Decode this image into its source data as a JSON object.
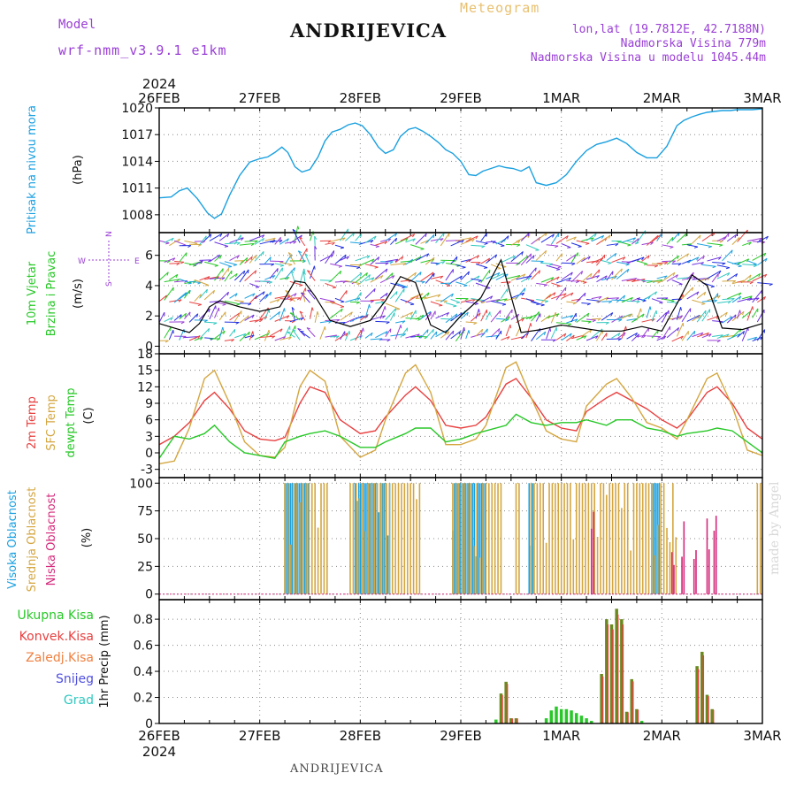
{
  "header": {
    "model_label": "Model",
    "model_name": "wrf-nmm_v3.9.1 e1km",
    "station": "ANDRIJEVICA",
    "meteogram_label": "Meteogram",
    "lonlat": "lon,lat (19.7812E, 42.7188N)",
    "elevation": "Nadmorska Visina 779m",
    "elevation_model": "Nadmorska Visina u modelu 1045.44m"
  },
  "footer": {
    "station": "ANDRIJEVICA",
    "credit": "made by Angel"
  },
  "time_axis": {
    "year": "2024",
    "labels": [
      "26FEB",
      "27FEB",
      "28FEB",
      "29FEB",
      "1MAR",
      "2MAR",
      "3MAR"
    ]
  },
  "colors": {
    "pressure": "#1aa0e0",
    "temp2m": "#e84040",
    "sfc_temp": "#d4a640",
    "dewpt": "#28c828",
    "high_cloud": "#1aa0e0",
    "mid_cloud": "#d4a640",
    "low_cloud": "#d4287a",
    "total_precip": "#28c828",
    "conv_precip": "#e84040",
    "frozen_precip": "#f08040",
    "snow": "#5050e0",
    "hail": "#30c8c0",
    "wind_label": "#9a3fd6",
    "black_line": "#000000"
  },
  "chart_data": [
    {
      "type": "line",
      "id": "pressure",
      "ylabel": "Pritisak na nivou mora",
      "unit": "(hPa)",
      "ylim": [
        1006,
        1020
      ],
      "yticks": [
        1008,
        1011,
        1014,
        1017,
        1020
      ],
      "grid": true,
      "series": [
        {
          "x": [
            0,
            0.12,
            0.2,
            0.28,
            0.38,
            0.48,
            0.55,
            0.62,
            0.7,
            0.8,
            0.9,
            1.0,
            1.08,
            1.15,
            1.22,
            1.28,
            1.35,
            1.42,
            1.5,
            1.58,
            1.65,
            1.72,
            1.8,
            1.88,
            1.95,
            2.02,
            2.1,
            2.18,
            2.25,
            2.33,
            2.4,
            2.48,
            2.55,
            2.62,
            2.7,
            2.78,
            2.85,
            2.92,
            3.0,
            3.08,
            3.15,
            3.22,
            3.3,
            3.38,
            3.45,
            3.52,
            3.6,
            3.68,
            3.75,
            3.85,
            3.95,
            4.05,
            4.15,
            4.25,
            4.35,
            4.45,
            4.55,
            4.65,
            4.75,
            4.85,
            4.95,
            5.05,
            5.15,
            5.22,
            5.3,
            5.38,
            5.45,
            5.52,
            5.6,
            5.68,
            5.75,
            5.82,
            5.9,
            6.0
          ],
          "values": [
            1009.9,
            1010.0,
            1010.7,
            1011.0,
            1009.8,
            1008.2,
            1007.6,
            1008.1,
            1010.2,
            1012.4,
            1013.9,
            1014.3,
            1014.5,
            1015.0,
            1015.6,
            1015.0,
            1013.4,
            1012.8,
            1013.1,
            1014.5,
            1016.3,
            1017.3,
            1017.6,
            1018.1,
            1018.3,
            1018.0,
            1017.0,
            1015.6,
            1014.9,
            1015.3,
            1016.8,
            1017.6,
            1017.8,
            1017.4,
            1016.8,
            1016.1,
            1015.3,
            1014.9,
            1014.0,
            1012.5,
            1012.4,
            1012.9,
            1013.2,
            1013.5,
            1013.3,
            1013.2,
            1012.9,
            1013.4,
            1011.6,
            1011.3,
            1011.6,
            1012.5,
            1014.0,
            1015.2,
            1015.9,
            1016.2,
            1016.6,
            1016.0,
            1015.0,
            1014.4,
            1014.4,
            1015.7,
            1018.0,
            1018.6,
            1019.0,
            1019.3,
            1019.5,
            1019.6,
            1019.7,
            1019.7,
            1019.8,
            1019.8,
            1019.8,
            1019.9
          ]
        }
      ]
    },
    {
      "type": "line",
      "id": "wind",
      "ylabel": "10m Vjetar",
      "ylabel2": "Brzina i Pravac",
      "unit": "(m/s)",
      "compass": {
        "n": "N",
        "s": "S",
        "e": "E",
        "w": "W"
      },
      "ylim": [
        -0.5,
        7.5
      ],
      "yticks": [
        0,
        2,
        4,
        6
      ],
      "grid": true,
      "series": [
        {
          "name": "speed",
          "x": [
            0,
            0.15,
            0.3,
            0.4,
            0.5,
            0.6,
            0.8,
            1.0,
            1.2,
            1.35,
            1.45,
            1.55,
            1.7,
            1.9,
            2.1,
            2.25,
            2.4,
            2.55,
            2.7,
            2.85,
            3.0,
            3.2,
            3.4,
            3.6,
            3.8,
            4.0,
            4.2,
            4.4,
            4.6,
            4.8,
            5.0,
            5.15,
            5.3,
            5.45,
            5.6,
            5.8,
            6.0
          ],
          "values": [
            1.5,
            1.2,
            0.9,
            1.5,
            2.6,
            3.0,
            2.6,
            2.3,
            2.6,
            4.3,
            4.2,
            3.3,
            1.7,
            1.3,
            1.7,
            3.0,
            4.6,
            4.2,
            1.4,
            0.9,
            2.0,
            3.2,
            5.7,
            0.9,
            1.1,
            1.4,
            1.2,
            1.0,
            1.0,
            1.3,
            1.0,
            2.8,
            4.7,
            4.0,
            1.2,
            1.1,
            1.5
          ]
        }
      ]
    },
    {
      "type": "line",
      "id": "temperature",
      "labels": [
        "2m Temp",
        "SFC Temp",
        "dewpt Temp"
      ],
      "unit": "(C)",
      "ylim": [
        -4.5,
        18
      ],
      "yticks": [
        -3,
        0,
        3,
        6,
        9,
        12,
        15,
        18
      ],
      "grid": true,
      "series": [
        {
          "name": "2m Temp",
          "x": [
            0,
            0.15,
            0.3,
            0.45,
            0.55,
            0.7,
            0.85,
            1.0,
            1.15,
            1.25,
            1.4,
            1.5,
            1.65,
            1.8,
            2.0,
            2.15,
            2.25,
            2.45,
            2.55,
            2.7,
            2.85,
            3.0,
            3.15,
            3.25,
            3.45,
            3.55,
            3.7,
            3.85,
            4.0,
            4.15,
            4.25,
            4.45,
            4.55,
            4.7,
            4.85,
            5.0,
            5.15,
            5.25,
            5.45,
            5.55,
            5.7,
            5.85,
            6.0
          ],
          "values": [
            1.5,
            3.0,
            5.5,
            9.5,
            11.0,
            8.0,
            4.0,
            2.5,
            2.2,
            2.8,
            9.0,
            12.0,
            11.0,
            6.0,
            3.5,
            4.0,
            6.5,
            10.5,
            12.0,
            9.5,
            5.0,
            4.5,
            5.0,
            6.5,
            12.5,
            13.5,
            10.0,
            6.0,
            4.5,
            4.0,
            7.5,
            10.0,
            11.0,
            9.5,
            8.0,
            6.0,
            4.5,
            6.0,
            11.0,
            12.0,
            9.0,
            4.5,
            2.5
          ]
        },
        {
          "name": "SFC Temp",
          "x": [
            0,
            0.15,
            0.3,
            0.45,
            0.55,
            0.7,
            0.85,
            1.0,
            1.15,
            1.25,
            1.4,
            1.5,
            1.65,
            1.8,
            2.0,
            2.15,
            2.25,
            2.45,
            2.55,
            2.7,
            2.85,
            3.0,
            3.15,
            3.25,
            3.45,
            3.55,
            3.7,
            3.85,
            4.0,
            4.15,
            4.25,
            4.45,
            4.55,
            4.7,
            4.85,
            5.0,
            5.15,
            5.25,
            5.45,
            5.55,
            5.7,
            5.85,
            6.0
          ],
          "values": [
            -2.0,
            -1.5,
            4.5,
            13.5,
            15.0,
            9.0,
            2.0,
            -0.5,
            -0.8,
            1.0,
            12.0,
            15.0,
            13.0,
            3.0,
            -0.8,
            0.5,
            6.0,
            14.5,
            16.0,
            11.0,
            1.5,
            1.5,
            2.5,
            5.0,
            15.5,
            16.5,
            10.0,
            4.0,
            2.5,
            2.0,
            8.5,
            12.5,
            13.5,
            10.0,
            5.5,
            4.5,
            2.5,
            6.0,
            13.5,
            14.5,
            8.5,
            0.5,
            -0.5
          ]
        },
        {
          "name": "dewpt Temp",
          "x": [
            0,
            0.15,
            0.3,
            0.45,
            0.55,
            0.7,
            0.85,
            1.0,
            1.15,
            1.25,
            1.4,
            1.5,
            1.65,
            1.8,
            2.0,
            2.15,
            2.25,
            2.45,
            2.55,
            2.7,
            2.85,
            3.0,
            3.15,
            3.25,
            3.45,
            3.55,
            3.7,
            3.85,
            4.0,
            4.15,
            4.25,
            4.45,
            4.55,
            4.7,
            4.85,
            5.0,
            5.15,
            5.25,
            5.45,
            5.55,
            5.7,
            5.85,
            6.0
          ],
          "values": [
            -1.0,
            3.0,
            2.5,
            3.5,
            5.0,
            2.0,
            0.0,
            -0.5,
            -1.0,
            2.0,
            3.0,
            3.5,
            4.0,
            3.0,
            1.0,
            1.0,
            2.0,
            3.5,
            4.5,
            4.5,
            2.0,
            2.5,
            3.5,
            4.0,
            5.0,
            7.0,
            5.5,
            5.0,
            5.5,
            5.5,
            6.0,
            5.0,
            6.0,
            6.0,
            4.5,
            4.0,
            3.0,
            3.5,
            4.0,
            4.5,
            4.0,
            2.0,
            0.0
          ]
        }
      ]
    },
    {
      "type": "bar",
      "id": "cloud",
      "labels": [
        "Visoka Oblacnost",
        "Srednja Oblacnost",
        "Niska Oblacnost"
      ],
      "unit": "(%)",
      "ylim": [
        -5,
        105
      ],
      "yticks": [
        0,
        25,
        50,
        75,
        100
      ],
      "grid": true,
      "high_segments": [
        [
          1.25,
          1.5
        ],
        [
          1.95,
          2.3
        ],
        [
          2.92,
          3.25
        ],
        [
          3.68,
          3.72
        ],
        [
          4.9,
          5.0
        ]
      ],
      "mid_segments": [
        [
          1.25,
          1.7
        ],
        [
          1.9,
          2.6
        ],
        [
          2.92,
          3.4
        ],
        [
          3.55,
          3.58
        ],
        [
          3.7,
          5.15
        ],
        [
          5.95,
          6.0
        ]
      ],
      "low_segments": [
        [
          4.3,
          4.32
        ],
        [
          5.1,
          5.12
        ],
        [
          5.2,
          5.23
        ],
        [
          5.32,
          5.35
        ],
        [
          5.45,
          5.48
        ],
        [
          5.52,
          5.55
        ]
      ]
    },
    {
      "type": "bar",
      "id": "precip",
      "labels": [
        "Ukupna Kisa",
        "Konvek.Kisa",
        "Zaledj.Kisa",
        "Snijeg",
        "Grad"
      ],
      "ylabel": "1hr Precip (mm)",
      "ylim": [
        0,
        0.95
      ],
      "yticks": [
        0,
        0.2,
        0.4,
        0.6,
        0.8
      ],
      "grid": true,
      "x": [
        3.35,
        3.4,
        3.45,
        3.5,
        3.55,
        3.85,
        3.9,
        3.95,
        4.0,
        4.05,
        4.1,
        4.15,
        4.2,
        4.25,
        4.3,
        4.4,
        4.45,
        4.5,
        4.55,
        4.6,
        4.65,
        4.7,
        4.75,
        4.8,
        5.35,
        5.4,
        5.45,
        5.5
      ],
      "values": [
        0.03,
        0.23,
        0.32,
        0.04,
        0.04,
        0.04,
        0.1,
        0.13,
        0.11,
        0.11,
        0.1,
        0.08,
        0.06,
        0.04,
        0.02,
        0.38,
        0.8,
        0.76,
        0.88,
        0.8,
        0.09,
        0.34,
        0.11,
        0.02,
        0.44,
        0.55,
        0.22,
        0.11
      ],
      "convective": [
        0,
        1,
        1,
        1,
        1,
        0,
        0,
        0,
        0,
        0,
        0,
        0,
        0,
        0,
        0,
        1,
        1,
        1,
        1,
        1,
        1,
        1,
        1,
        0,
        1,
        1,
        1,
        1
      ]
    }
  ]
}
